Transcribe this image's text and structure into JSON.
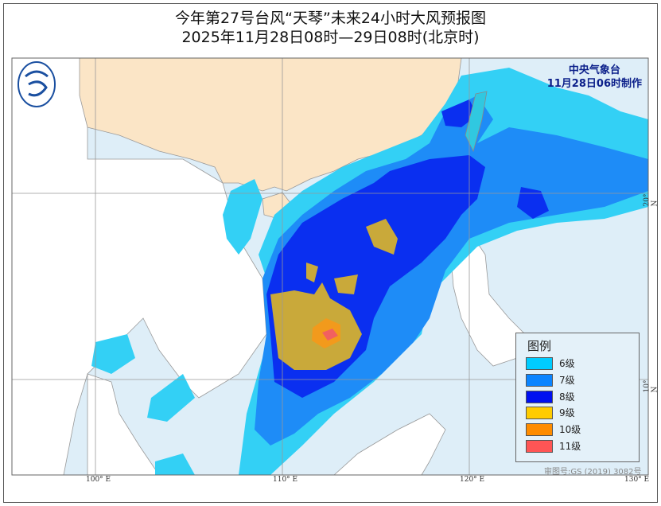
{
  "title": "今年第27号台风“天琴”未来24小时大风预报图",
  "subtitle": "2025年11月28日08时—29日08时(北京时)",
  "agency": {
    "name": "中央气象台",
    "issued": "11月28日06时制作"
  },
  "legend": {
    "title": "图例",
    "items": [
      {
        "label": "6级",
        "color": "#00ccff"
      },
      {
        "label": "7级",
        "color": "#0a84ff"
      },
      {
        "label": "8级",
        "color": "#0010f0"
      },
      {
        "label": "9级",
        "color": "#ffcc00"
      },
      {
        "label": "10级",
        "color": "#ff8c00"
      },
      {
        "label": "11级",
        "color": "#ff5555"
      }
    ]
  },
  "axes": {
    "lon": [
      "100° E",
      "110° E",
      "120° E",
      "130° E"
    ],
    "lat": [
      "20° N",
      "10° N"
    ]
  },
  "credit": "审图号:GS (2019) 3082号",
  "logo": "cma-logo-icon"
}
